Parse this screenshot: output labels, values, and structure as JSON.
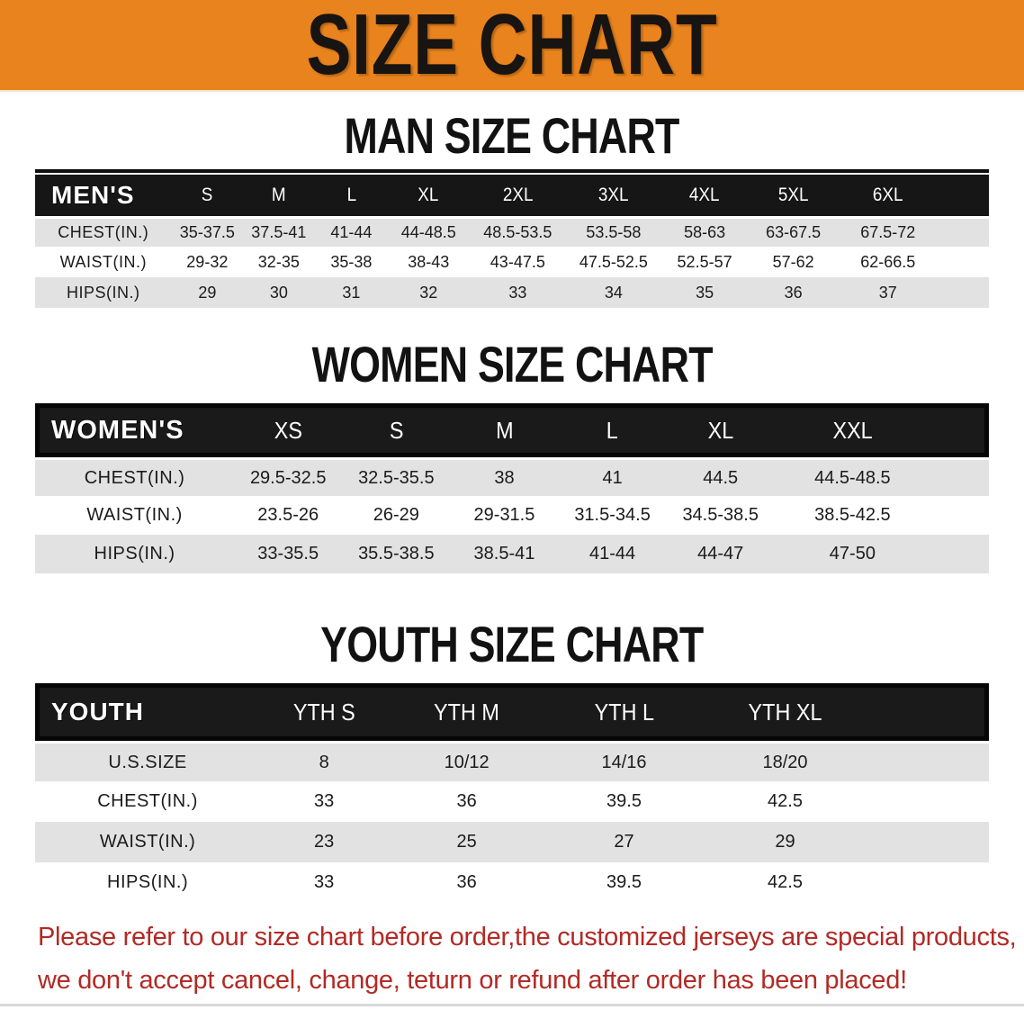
{
  "banner": {
    "title": "SIZE CHART"
  },
  "colors": {
    "banner_bg": "#E8831E",
    "table_header_bg": "#161616",
    "row_alt_bg": "#E2E2E2",
    "footer_text": "#B22A25"
  },
  "sections": [
    {
      "id": "mens",
      "heading": "MAN SIZE CHART",
      "table": {
        "header_label": "MEN'S",
        "sizes": [
          "S",
          "M",
          "L",
          "XL",
          "2XL",
          "3XL",
          "4XL",
          "5XL",
          "6XL"
        ],
        "rows": [
          {
            "label": "CHEST(IN.)",
            "values": [
              "35-37.5",
              "37.5-41",
              "41-44",
              "44-48.5",
              "48.5-53.5",
              "53.5-58",
              "58-63",
              "63-67.5",
              "67.5-72"
            ]
          },
          {
            "label": "WAIST(IN.)",
            "values": [
              "29-32",
              "32-35",
              "35-38",
              "38-43",
              "43-47.5",
              "47.5-52.5",
              "52.5-57",
              "57-62",
              "62-66.5"
            ]
          },
          {
            "label": "HIPS(IN.)",
            "values": [
              "29",
              "30",
              "31",
              "32",
              "33",
              "34",
              "35",
              "36",
              "37"
            ]
          }
        ]
      }
    },
    {
      "id": "womens",
      "heading": "WOMEN SIZE CHART",
      "table": {
        "header_label": "WOMEN'S",
        "sizes": [
          "XS",
          "S",
          "M",
          "L",
          "XL",
          "XXL"
        ],
        "rows": [
          {
            "label": "CHEST(IN.)",
            "values": [
              "29.5-32.5",
              "32.5-35.5",
              "38",
              "41",
              "44.5",
              "44.5-48.5"
            ]
          },
          {
            "label": "WAIST(IN.)",
            "values": [
              "23.5-26",
              "26-29",
              "29-31.5",
              "31.5-34.5",
              "34.5-38.5",
              "38.5-42.5"
            ]
          },
          {
            "label": "HIPS(IN.)",
            "values": [
              "33-35.5",
              "35.5-38.5",
              "38.5-41",
              "41-44",
              "44-47",
              "47-50"
            ]
          }
        ]
      }
    },
    {
      "id": "youth",
      "heading": "YOUTH SIZE CHART",
      "table": {
        "header_label": "YOUTH",
        "sizes": [
          "YTH S",
          "YTH M",
          "YTH L",
          "YTH XL"
        ],
        "rows": [
          {
            "label": "U.S.SIZE",
            "values": [
              "8",
              "10/12",
              "14/16",
              "18/20"
            ]
          },
          {
            "label": "CHEST(IN.)",
            "values": [
              "33",
              "36",
              "39.5",
              "42.5"
            ]
          },
          {
            "label": "WAIST(IN.)",
            "values": [
              "23",
              "25",
              "27",
              "29"
            ]
          },
          {
            "label": "HIPS(IN.)",
            "values": [
              "33",
              "36",
              "39.5",
              "42.5"
            ]
          }
        ]
      }
    }
  ],
  "footer": {
    "line1": "Please refer to our size chart before order,the customized jerseys are special products,",
    "line2": "we don't accept cancel, change, teturn or refund after order has been placed!"
  }
}
